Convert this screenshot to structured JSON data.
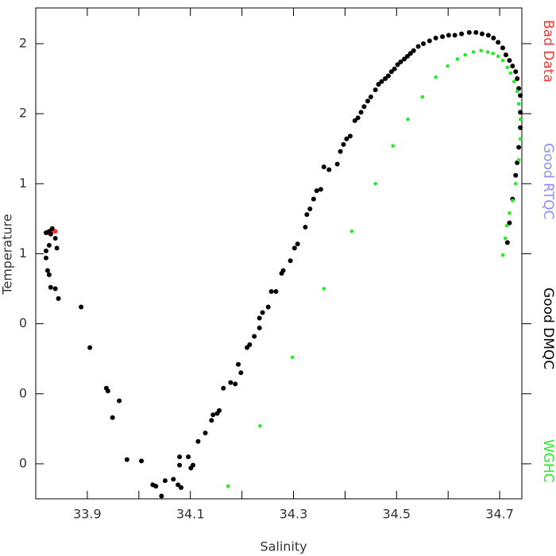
{
  "chart_data": {
    "type": "scatter",
    "x_label": "Salinity",
    "y_label": "Temperature",
    "xlim": [
      33.8,
      34.743
    ],
    "ylim": [
      -0.75,
      2.755
    ],
    "xticks": [
      33.9,
      34.1,
      34.3,
      34.5,
      34.7
    ],
    "xminorticks": [
      34.0,
      34.2,
      34.4,
      34.6
    ],
    "yticks": [
      {
        "value": 2.5,
        "label": "2"
      },
      {
        "value": 2.0,
        "label": "2"
      },
      {
        "value": 1.5,
        "label": "1"
      },
      {
        "value": 1.0,
        "label": "1"
      },
      {
        "value": 0.5,
        "label": "0"
      },
      {
        "value": 0.0,
        "label": "0"
      },
      {
        "value": -0.5,
        "label": "0"
      }
    ],
    "legend_position": "right",
    "series": [
      {
        "name": "Bad Data",
        "color": "#ff3030",
        "x": [
          33.823,
          33.832,
          33.838
        ],
        "y": [
          1.15,
          1.16,
          1.16
        ]
      },
      {
        "name": "Good RTQC",
        "color": "#8c8cff",
        "x": [],
        "y": []
      },
      {
        "name": "Good DMQC",
        "color": "#000000",
        "x": [
          33.82,
          33.826,
          33.832,
          33.838,
          33.829,
          33.826,
          33.82,
          33.82,
          33.823,
          33.826,
          33.829,
          33.838,
          33.841,
          33.844,
          33.888,
          33.905,
          33.937,
          33.94,
          33.962,
          33.949,
          33.977,
          34.005,
          34.027,
          34.033,
          34.044,
          34.051,
          34.067,
          34.079,
          34.079,
          34.076,
          34.082,
          34.096,
          34.101,
          34.105,
          34.115,
          34.129,
          34.141,
          34.144,
          34.152,
          34.156,
          34.164,
          34.178,
          34.187,
          34.193,
          34.198,
          34.21,
          34.215,
          34.224,
          34.234,
          34.234,
          34.24,
          34.251,
          34.257,
          34.266,
          34.277,
          34.28,
          34.294,
          34.302,
          34.308,
          34.323,
          34.326,
          34.332,
          34.339,
          34.345,
          34.353,
          34.359,
          34.369,
          34.385,
          34.391,
          34.397,
          34.403,
          34.41,
          34.419,
          34.425,
          34.431,
          34.437,
          34.444,
          34.45,
          34.459,
          34.465,
          34.471,
          34.478,
          34.484,
          34.49,
          34.496,
          34.502,
          34.508,
          34.515,
          34.521,
          34.527,
          34.533,
          34.542,
          34.552,
          34.564,
          34.576,
          34.589,
          34.601,
          34.613,
          34.626,
          34.641,
          34.654,
          34.666,
          34.678,
          34.688,
          34.697,
          34.706,
          34.712,
          34.719,
          34.725,
          34.731,
          34.734,
          34.737,
          34.74,
          34.74,
          34.74,
          34.737,
          34.734,
          34.731,
          34.725,
          34.719,
          34.715
        ],
        "y": [
          1.15,
          1.16,
          1.18,
          1.11,
          1.14,
          1.06,
          1.02,
          0.97,
          0.88,
          0.85,
          0.76,
          0.75,
          1.04,
          0.68,
          0.62,
          0.33,
          0.04,
          0.02,
          -0.05,
          -0.17,
          -0.47,
          -0.48,
          -0.65,
          -0.66,
          -0.73,
          -0.62,
          -0.61,
          -0.45,
          -0.51,
          -0.65,
          -0.67,
          -0.45,
          -0.53,
          -0.51,
          -0.34,
          -0.28,
          -0.19,
          -0.15,
          -0.14,
          -0.12,
          0.04,
          0.08,
          0.07,
          0.21,
          0.15,
          0.33,
          0.35,
          0.41,
          0.47,
          0.54,
          0.58,
          0.62,
          0.73,
          0.73,
          0.86,
          0.88,
          0.95,
          1.04,
          1.07,
          1.19,
          1.28,
          1.32,
          1.39,
          1.45,
          1.46,
          1.62,
          1.6,
          1.64,
          1.73,
          1.78,
          1.82,
          1.84,
          1.95,
          1.97,
          2.01,
          2.05,
          2.09,
          2.12,
          2.17,
          2.21,
          2.23,
          2.25,
          2.27,
          2.3,
          2.32,
          2.35,
          2.37,
          2.39,
          2.41,
          2.43,
          2.45,
          2.48,
          2.5,
          2.52,
          2.54,
          2.55,
          2.56,
          2.56,
          2.57,
          2.58,
          2.58,
          2.57,
          2.56,
          2.54,
          2.51,
          2.47,
          2.42,
          2.38,
          2.34,
          2.3,
          2.25,
          2.18,
          2.13,
          2.01,
          1.9,
          1.76,
          1.65,
          1.56,
          1.39,
          1.22,
          1.08
        ]
      },
      {
        "name": "WGHC",
        "color": "#22ee22",
        "x": [
          34.173,
          34.235,
          34.298,
          34.359,
          34.413,
          34.459,
          34.493,
          34.522,
          34.55,
          34.576,
          34.599,
          34.618,
          34.633,
          34.649,
          34.664,
          34.677,
          34.687,
          34.697,
          34.706,
          34.715,
          34.721,
          34.728,
          34.734,
          34.737,
          34.74,
          34.74,
          34.737,
          34.731,
          34.725,
          34.719,
          34.714,
          34.711,
          34.706
        ],
        "y": [
          -0.66,
          -0.23,
          0.26,
          0.75,
          1.16,
          1.5,
          1.77,
          1.96,
          2.12,
          2.26,
          2.34,
          2.39,
          2.42,
          2.44,
          2.45,
          2.44,
          2.43,
          2.41,
          2.38,
          2.33,
          2.29,
          2.23,
          2.16,
          2.07,
          1.96,
          1.82,
          1.67,
          1.5,
          1.38,
          1.29,
          1.2,
          1.11,
          0.99
        ]
      }
    ]
  }
}
